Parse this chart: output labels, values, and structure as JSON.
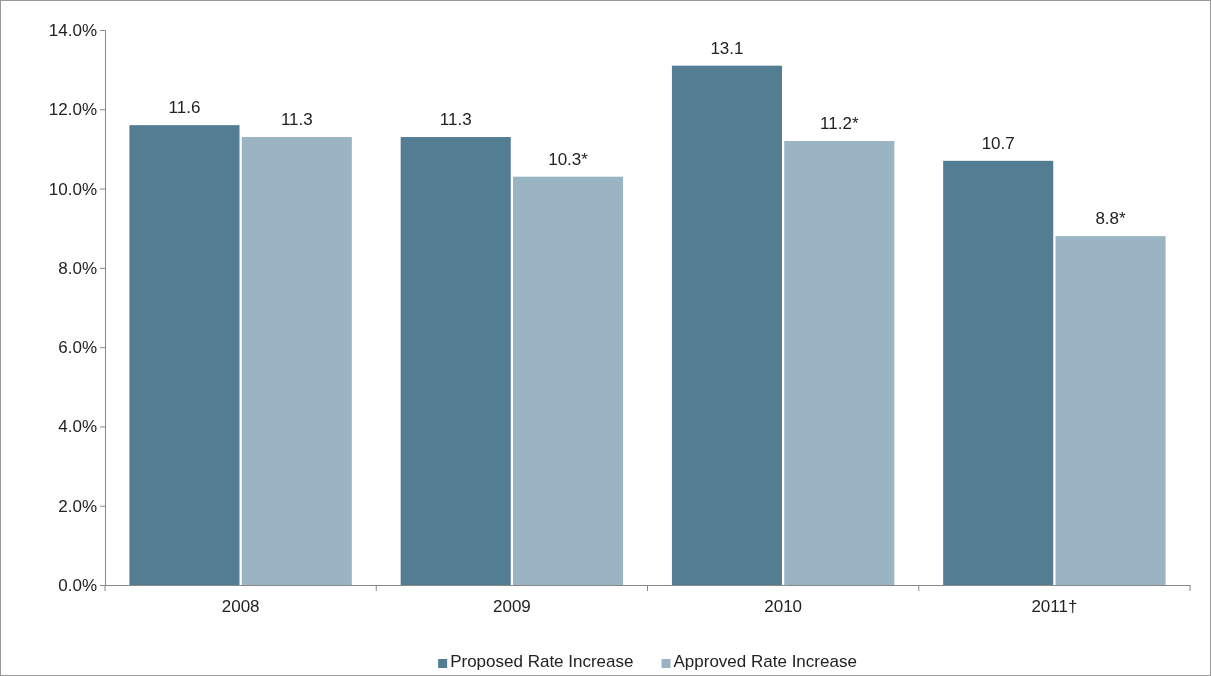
{
  "chart_data": {
    "type": "bar",
    "categories": [
      "2008",
      "2009",
      "2010",
      "2011†"
    ],
    "series": [
      {
        "name": "Proposed Rate Increase",
        "color": "#527d93",
        "values": [
          11.6,
          11.3,
          13.1,
          10.7
        ],
        "value_labels": [
          "11.6",
          "11.3",
          "13.1",
          "10.7"
        ]
      },
      {
        "name": "Approved Rate Increase",
        "color": "#9ab4c4",
        "values": [
          11.3,
          10.3,
          11.2,
          8.8
        ],
        "value_labels": [
          "11.3",
          "10.3*",
          "11.2*",
          "8.8*"
        ]
      }
    ],
    "ylim": [
      0,
      14
    ],
    "yticks": [
      {
        "value": 0,
        "label": "0.0%"
      },
      {
        "value": 2,
        "label": "2.0%"
      },
      {
        "value": 4,
        "label": "4.0%"
      },
      {
        "value": 6,
        "label": "6.0%"
      },
      {
        "value": 8,
        "label": "8.0%"
      },
      {
        "value": 10,
        "label": "10.0%"
      },
      {
        "value": 12,
        "label": "12.0%"
      },
      {
        "value": 14,
        "label": "14.0%"
      }
    ],
    "grid": false,
    "legend": "bottom"
  }
}
